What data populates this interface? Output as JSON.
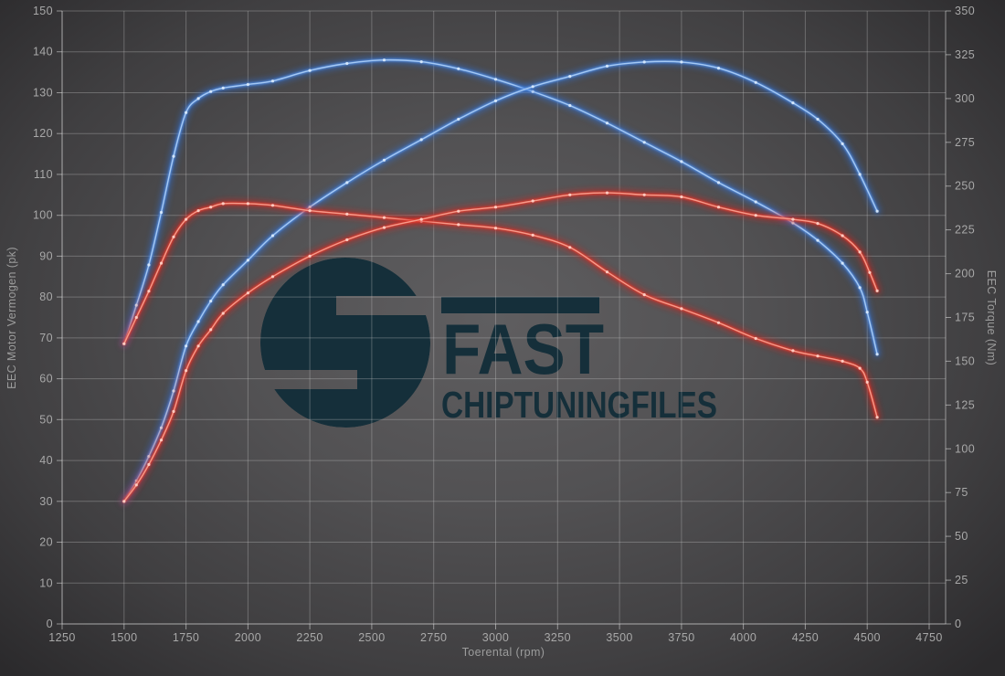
{
  "watermark": {
    "brand": "FAST",
    "sub": "CHIPTUNINGFILES",
    "color": "#152f3a"
  },
  "chart_data": {
    "type": "line",
    "title": "",
    "xlabel": "Toerental (rpm)",
    "ylabel_left": "EEC Motor Vermogen (pk)",
    "ylabel_right": "EEC Torque (Nm)",
    "x_range": [
      1250,
      4750
    ],
    "y_left_range": [
      0,
      150
    ],
    "y_right_range": [
      0,
      350
    ],
    "grid": true,
    "legend_position": "none",
    "x_ticks": [
      1250,
      1500,
      1750,
      2000,
      2250,
      2500,
      2750,
      3000,
      3250,
      3500,
      3750,
      4000,
      4250,
      4500,
      4750
    ],
    "y_left_ticks": [
      0,
      10,
      20,
      30,
      40,
      50,
      60,
      70,
      80,
      90,
      100,
      110,
      120,
      130,
      140,
      150
    ],
    "y_right_ticks": [
      0,
      25,
      50,
      75,
      100,
      125,
      150,
      175,
      200,
      225,
      250,
      275,
      300,
      325,
      350
    ],
    "series": [
      {
        "name": "torque-blue",
        "axis": "right",
        "unit": "Nm",
        "color": "#5590e4",
        "glow": "#2e6fd6",
        "core": "#aaccf5",
        "dot": "#d9eafc",
        "x": [
          1500,
          1550,
          1600,
          1650,
          1700,
          1750,
          1800,
          1850,
          1900,
          2000,
          2100,
          2250,
          2400,
          2550,
          2700,
          2850,
          3000,
          3150,
          3300,
          3450,
          3600,
          3750,
          3900,
          4050,
          4200,
          4300,
          4400,
          4470,
          4500,
          4540
        ],
        "y": [
          160,
          182,
          205,
          235,
          267,
          292,
          300,
          304,
          306,
          308,
          310,
          316,
          320,
          322,
          321,
          317,
          311,
          304,
          296,
          286,
          275,
          264,
          252,
          241,
          229,
          219,
          206,
          192,
          178,
          154
        ]
      },
      {
        "name": "power-blue",
        "axis": "left",
        "unit": "pk",
        "color": "#5590e4",
        "glow": "#2e6fd6",
        "core": "#aaccf5",
        "dot": "#d9eafc",
        "x": [
          1500,
          1550,
          1600,
          1650,
          1700,
          1750,
          1800,
          1850,
          1900,
          2000,
          2100,
          2250,
          2400,
          2550,
          2700,
          2850,
          3000,
          3150,
          3300,
          3450,
          3600,
          3750,
          3900,
          4050,
          4200,
          4300,
          4400,
          4470,
          4540
        ],
        "y": [
          30,
          35,
          41,
          48,
          57,
          68,
          74,
          79,
          83,
          89,
          95,
          102,
          108,
          113.5,
          118.5,
          123.5,
          128,
          131.5,
          134,
          136.5,
          137.5,
          137.5,
          136,
          132.5,
          127.5,
          123.5,
          117.5,
          110,
          101
        ]
      },
      {
        "name": "torque-red",
        "axis": "right",
        "unit": "Nm",
        "color": "#e63c2e",
        "glow": "#d2201a",
        "core": "#f89f8f",
        "dot": "#ffd2c8",
        "x": [
          1500,
          1550,
          1600,
          1650,
          1700,
          1750,
          1800,
          1850,
          1900,
          2000,
          2100,
          2250,
          2400,
          2550,
          2700,
          2850,
          3000,
          3150,
          3300,
          3450,
          3600,
          3750,
          3900,
          4050,
          4200,
          4300,
          4400,
          4470,
          4500,
          4540
        ],
        "y": [
          160,
          175,
          190,
          206,
          221,
          231,
          236,
          238,
          240,
          240,
          239,
          236,
          234,
          232,
          230,
          228,
          226,
          222,
          215,
          201,
          188,
          180,
          172,
          163,
          156,
          153,
          150,
          146,
          138,
          118
        ]
      },
      {
        "name": "power-red",
        "axis": "left",
        "unit": "pk",
        "color": "#e63c2e",
        "glow": "#d2201a",
        "core": "#f89f8f",
        "dot": "#ffd2c8",
        "x": [
          1500,
          1550,
          1600,
          1650,
          1700,
          1750,
          1800,
          1850,
          1900,
          2000,
          2100,
          2250,
          2400,
          2550,
          2700,
          2850,
          3000,
          3150,
          3300,
          3450,
          3600,
          3750,
          3900,
          4050,
          4200,
          4300,
          4400,
          4470,
          4510,
          4540
        ],
        "y": [
          30,
          34,
          39,
          45,
          52,
          62,
          68,
          72,
          76,
          81,
          85,
          90,
          94,
          97,
          99,
          101,
          102,
          103.5,
          105,
          105.5,
          105,
          104.5,
          102,
          100,
          99,
          98,
          95,
          91,
          86,
          81.5
        ]
      }
    ]
  }
}
